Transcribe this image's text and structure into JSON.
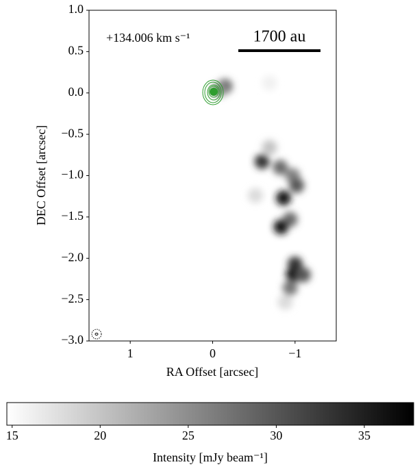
{
  "chart_data": {
    "type": "image",
    "annotation": "+134.006 km s⁻¹",
    "scale_bar_label": "1700 au",
    "xlabel": "RA Offset [arcsec]",
    "ylabel": "DEC Offset [arcsec]",
    "xlim": [
      1.5,
      -1.5
    ],
    "ylim": [
      -3.0,
      1.0
    ],
    "xticks": [
      1,
      0,
      {
        "value": -1,
        "label": "−1"
      }
    ],
    "yticks": [
      {
        "value": 1.0,
        "label": "1.0"
      },
      {
        "value": 0.5,
        "label": "0.5"
      },
      {
        "value": 0.0,
        "label": "0.0"
      },
      {
        "value": -0.5,
        "label": "−0.5"
      },
      {
        "value": -1.0,
        "label": "−1.0"
      },
      {
        "value": -1.5,
        "label": "−1.5"
      },
      {
        "value": -2.0,
        "label": "−2.0"
      },
      {
        "value": -2.5,
        "label": "−2.5"
      },
      {
        "value": -3.0,
        "label": "−3.0"
      }
    ],
    "emission": {
      "x": [
        -0.15,
        -0.08,
        -0.69,
        -0.6,
        -0.82,
        -0.97,
        -1.02,
        -0.86,
        -0.52,
        -0.94,
        -0.83,
        -1.0,
        -0.98,
        -1.1,
        -0.94,
        -0.88,
        -0.69
      ],
      "y": [
        0.08,
        0.04,
        -0.66,
        -0.83,
        -0.9,
        -1.0,
        -1.12,
        -1.27,
        -1.24,
        -1.53,
        -1.62,
        -2.07,
        -2.2,
        -2.2,
        -2.36,
        -2.53,
        0.12
      ],
      "values": [
        28,
        25,
        20,
        33,
        28,
        26,
        30,
        36,
        18,
        28,
        36,
        33,
        37,
        30,
        27,
        18,
        16
      ]
    },
    "contour_color": "#2e9e2e",
    "colorbar": {
      "label": "Intensity [mJy beam⁻¹]",
      "lim": [
        14.7,
        37.8
      ],
      "ticks": [
        15,
        20,
        25,
        30,
        35
      ]
    }
  }
}
